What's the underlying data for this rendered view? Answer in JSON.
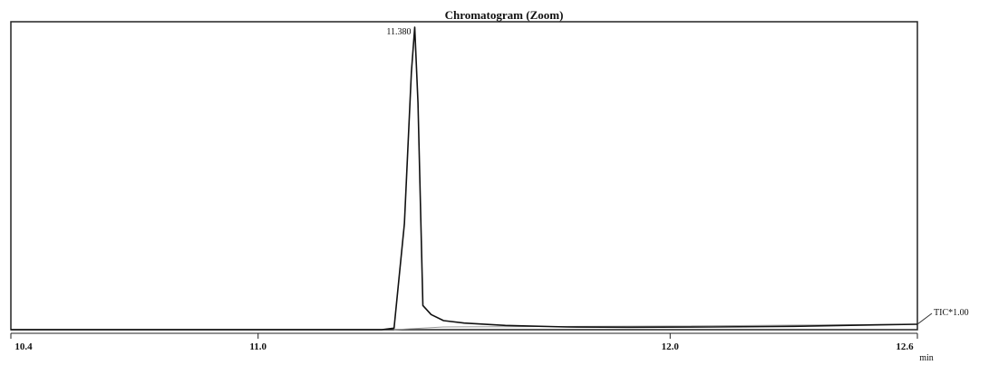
{
  "chart_data": {
    "type": "line",
    "title": "Chromatogram (Zoom)",
    "xlabel": "",
    "x_unit_label": "min",
    "ylabel": "",
    "xlim": [
      10.4,
      12.6
    ],
    "ylim": [
      0,
      100
    ],
    "x_ticks": [
      {
        "value": 10.4,
        "label": "10.4"
      },
      {
        "value": 11.0,
        "label": "11.0"
      },
      {
        "value": 12.0,
        "label": "12.0"
      },
      {
        "value": 12.6,
        "label": "12.6"
      }
    ],
    "peak_label": {
      "x": 11.38,
      "y": 100,
      "text": "11.380"
    },
    "series": [
      {
        "name": "TIC*1.00",
        "color": "#111111",
        "x": [
          10.4,
          11.0,
          11.3,
          11.33,
          11.355,
          11.372,
          11.38,
          11.388,
          11.4,
          11.42,
          11.45,
          11.5,
          11.6,
          11.75,
          11.9,
          12.1,
          12.3,
          12.5,
          12.6
        ],
        "y": [
          0,
          0,
          0,
          0.5,
          35,
          85,
          100,
          75,
          8,
          5,
          3,
          2.2,
          1.4,
          0.9,
          0.8,
          0.9,
          1.1,
          1.6,
          1.8
        ]
      }
    ],
    "baseline": {
      "color": "#999999",
      "x": [
        11.33,
        11.45,
        11.6,
        12.0,
        12.6
      ],
      "y": [
        0,
        0.9,
        1.0,
        1.2,
        1.8
      ]
    },
    "grid": false,
    "legend": "right-end label"
  }
}
